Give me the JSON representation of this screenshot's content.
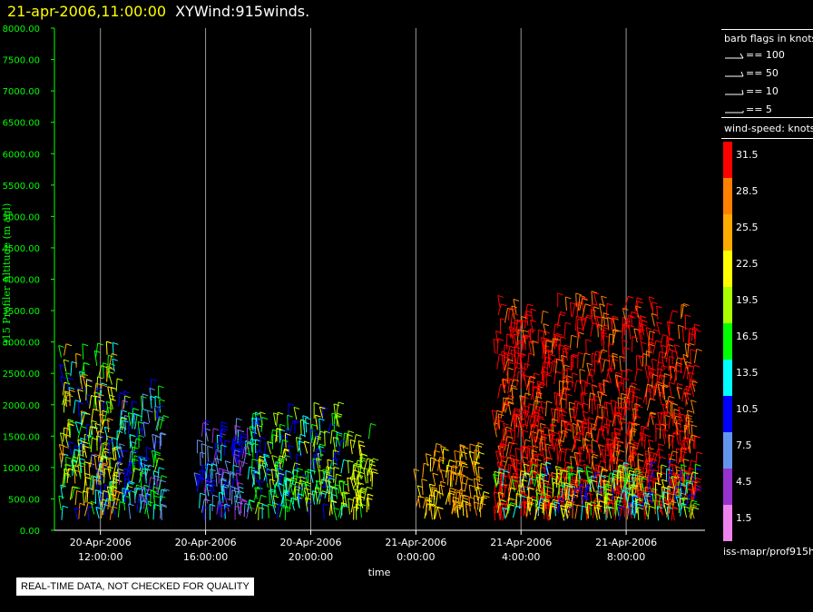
{
  "header": {
    "datetime": "21-apr-2006,11:00:00",
    "title": "XYWind:915winds."
  },
  "chart_data": {
    "type": "scatter",
    "title": "XYWind:915winds.",
    "xlabel": "time",
    "ylabel": "915 Profiler Altitude (m agl)",
    "xlim": [
      "2006-04-20T10:15",
      "2006-04-21T11:00"
    ],
    "ylim": [
      0,
      8000
    ],
    "grid": "vertical lines at x ticks",
    "x_ticks": [
      {
        "date": "20-Apr-2006",
        "time": "12:00:00"
      },
      {
        "date": "20-Apr-2006",
        "time": "16:00:00"
      },
      {
        "date": "20-Apr-2006",
        "time": "20:00:00"
      },
      {
        "date": "21-Apr-2006",
        "time": "0:00:00"
      },
      {
        "date": "21-Apr-2006",
        "time": "4:00:00"
      },
      {
        "date": "21-Apr-2006",
        "time": "8:00:00"
      }
    ],
    "y_ticks": [
      "0.00",
      "500.00",
      "1000.00",
      "1500.00",
      "2000.00",
      "2500.00",
      "3000.00",
      "3500.00",
      "4000.00",
      "4500.00",
      "5000.00",
      "5500.00",
      "6000.00",
      "6500.00",
      "7000.00",
      "7500.00",
      "8000.00"
    ],
    "wind_regions": [
      {
        "from": "2006-04-20T10:30",
        "to": "2006-04-20T12:40",
        "top_m": 2800,
        "speed_kt": [
          10,
          28
        ]
      },
      {
        "from": "2006-04-20T12:40",
        "to": "2006-04-20T14:20",
        "top_m": 2200,
        "speed_kt": [
          5,
          19
        ]
      },
      {
        "from": "2006-04-20T15:40",
        "to": "2006-04-20T17:40",
        "top_m": 1600,
        "speed_kt": [
          3,
          14
        ]
      },
      {
        "from": "2006-04-20T17:40",
        "to": "2006-04-20T21:15",
        "top_m": 1800,
        "speed_kt": [
          10,
          22
        ]
      },
      {
        "from": "2006-04-20T21:15",
        "to": "2006-04-20T22:20",
        "top_m": 1500,
        "speed_kt": [
          17,
          24
        ]
      },
      {
        "from": "2006-04-21T00:00",
        "to": "2006-04-21T02:30",
        "top_m": 1200,
        "speed_kt": [
          22,
          28
        ]
      },
      {
        "from": "2006-04-21T03:00",
        "to": "2006-04-21T10:40",
        "top_m": 3600,
        "speed_kt": [
          28,
          35
        ]
      },
      {
        "from": "2006-04-21T03:00",
        "to": "2006-04-21T10:40",
        "top_m": 900,
        "speed_kt": [
          10,
          24
        ]
      }
    ]
  },
  "legend": {
    "barb_title": "barb flags in knots",
    "barbs": [
      "== 100",
      "== 50",
      "== 10",
      "== 5"
    ],
    "speed_title": "wind-speed: knots",
    "ramp": [
      {
        "label": "31.5",
        "color": "#ff0000"
      },
      {
        "label": "28.5",
        "color": "#ff7f00"
      },
      {
        "label": "25.5",
        "color": "#ffaa00"
      },
      {
        "label": "22.5",
        "color": "#ffff00"
      },
      {
        "label": "19.5",
        "color": "#aaff00"
      },
      {
        "label": "16.5",
        "color": "#00ff00"
      },
      {
        "label": "13.5",
        "color": "#00ffff"
      },
      {
        "label": "10.5",
        "color": "#0000ff"
      },
      {
        "label": "7.5",
        "color": "#6495ed"
      },
      {
        "label": "4.5",
        "color": "#9932cc"
      },
      {
        "label": "1.5",
        "color": "#ee82ee"
      }
    ]
  },
  "footer": {
    "quality_note": "REAL-TIME DATA, NOT CHECKED FOR QUALITY",
    "source": "iss-mapr/prof915h"
  },
  "colors": {
    "background": "#000000",
    "axis_text": "#00ff00",
    "tick_text": "#ffffff",
    "title_date": "#ffff00"
  }
}
